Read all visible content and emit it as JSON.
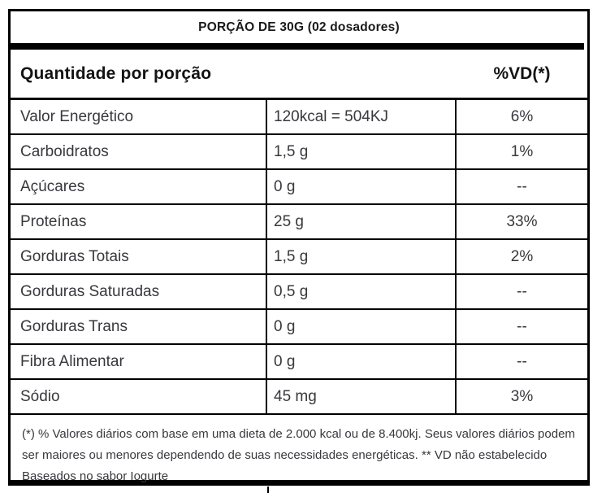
{
  "label": {
    "title": "PORÇÃO DE 30G (02 dosadores)",
    "header": {
      "quantity_label": "Quantidade por porção",
      "dv_label": "%VD(*)"
    },
    "columns": [
      "nutrient",
      "amount_per_serving",
      "percent_daily_value"
    ],
    "rows": [
      {
        "nutrient": "Valor Energético",
        "amount": "120kcal = 504KJ",
        "dv": "6%"
      },
      {
        "nutrient": "Carboidratos",
        "amount": "1,5 g",
        "dv": "1%"
      },
      {
        "nutrient": "Açúcares",
        "amount": "0 g",
        "dv": "--"
      },
      {
        "nutrient": "Proteínas",
        "amount": "25 g",
        "dv": "33%"
      },
      {
        "nutrient": "Gorduras Totais",
        "amount": "1,5 g",
        "dv": "2%"
      },
      {
        "nutrient": "Gorduras Saturadas",
        "amount": "0,5 g",
        "dv": "--"
      },
      {
        "nutrient": "Gorduras Trans",
        "amount": "0 g",
        "dv": "--"
      },
      {
        "nutrient": "Fibra Alimentar",
        "amount": "0 g",
        "dv": "--"
      },
      {
        "nutrient": "Sódio",
        "amount": "45 mg",
        "dv": "3%"
      }
    ],
    "footnote": "(*) % Valores diários com base em uma dieta de 2.000 kcal ou de 8.400kj. Seus valores diários podem ser maiores ou menores dependendo de suas necessidades energéticas. ** VD não estabelecido Baseados no sabor Iogurte",
    "colors": {
      "border": "#000000",
      "title_text": "#1a1a1a",
      "body_text": "#38383d"
    }
  }
}
